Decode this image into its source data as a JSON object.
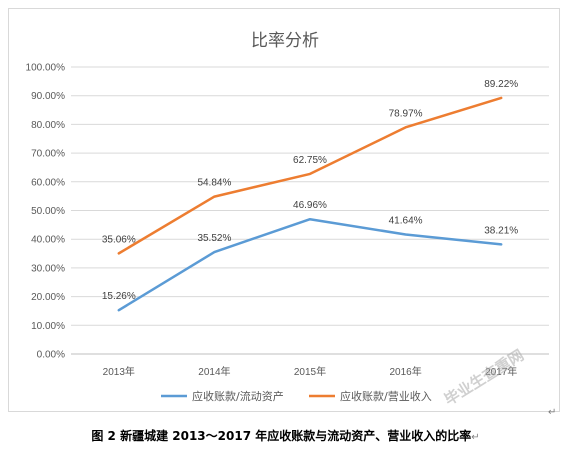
{
  "chart_data": {
    "type": "line",
    "title": "比率分析",
    "categories": [
      "2013年",
      "2014年",
      "2015年",
      "2016年",
      "2017年"
    ],
    "series": [
      {
        "name": "应收账款/流动资产",
        "values": [
          15.26,
          35.52,
          46.96,
          41.64,
          38.21
        ],
        "labels": [
          "15.26%",
          "35.52%",
          "46.96%",
          "41.64%",
          "38.21%"
        ],
        "color": "#5b9bd5"
      },
      {
        "name": "应收账款/营业收入",
        "values": [
          35.06,
          54.84,
          62.75,
          78.97,
          89.22
        ],
        "labels": [
          "35.06%",
          "54.84%",
          "62.75%",
          "78.97%",
          "89.22%"
        ],
        "color": "#ed7d31"
      }
    ],
    "y_ticks": [
      "0.00%",
      "10.00%",
      "20.00%",
      "30.00%",
      "40.00%",
      "50.00%",
      "60.00%",
      "70.00%",
      "80.00%",
      "90.00%",
      "100.00%"
    ],
    "ylim": [
      0,
      100
    ],
    "grid": true,
    "legend_position": "bottom"
  },
  "caption": "图 2  新疆城建 2013～2017 年应收账款与流动资产、营业收入的比率",
  "caption_mark": "↵",
  "corner_mark": "↵",
  "watermark": "毕业生查重网"
}
